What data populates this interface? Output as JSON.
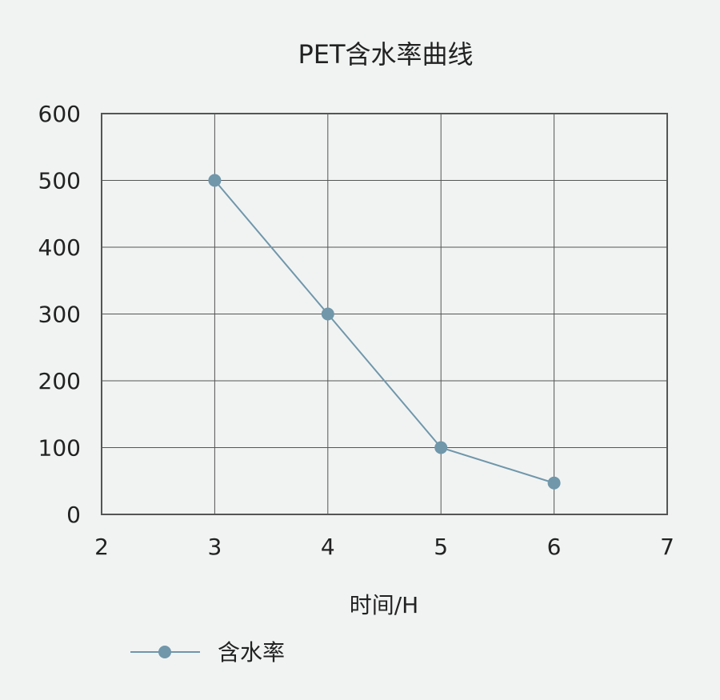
{
  "chart_data": {
    "type": "line",
    "title": "PET含水率曲线",
    "xlabel": "时间/H",
    "ylabel": "",
    "xlim": [
      2,
      7
    ],
    "ylim": [
      0,
      600
    ],
    "xticks": [
      2,
      3,
      4,
      5,
      6,
      7
    ],
    "yticks": [
      0,
      100,
      200,
      300,
      400,
      500,
      600
    ],
    "grid": true,
    "legend_position": "bottom-left",
    "series": [
      {
        "name": "含水率",
        "color": "#7097aa",
        "x": [
          3,
          4,
          5,
          6
        ],
        "y": [
          500,
          300,
          100,
          47
        ]
      }
    ]
  }
}
